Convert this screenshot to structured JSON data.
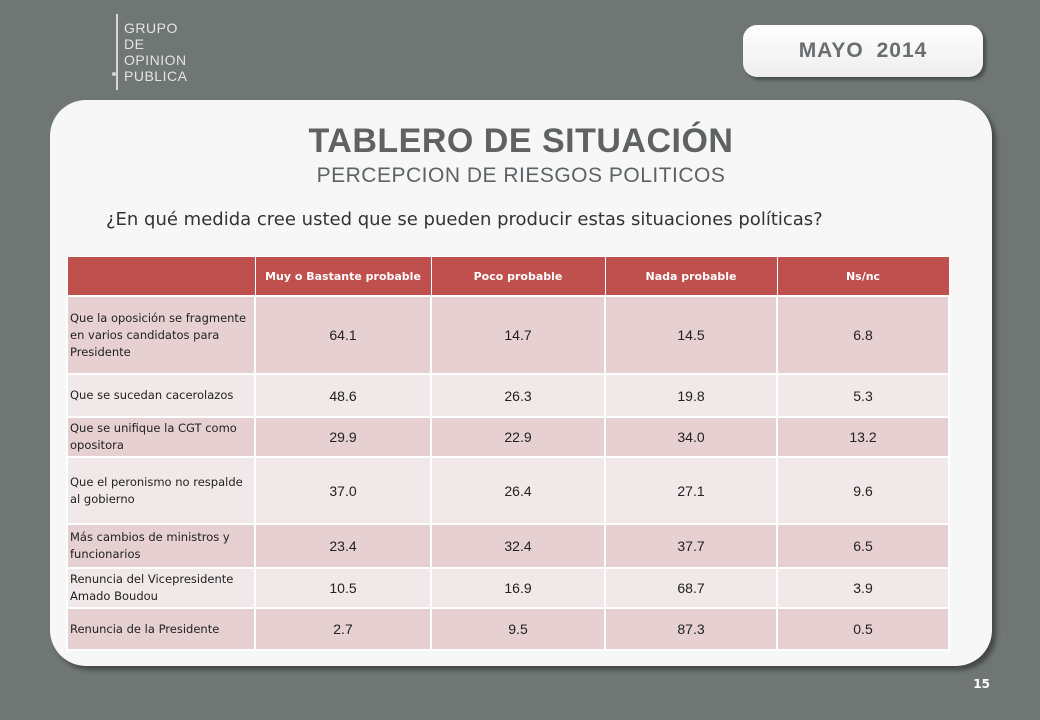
{
  "logo": {
    "lines": [
      "GRUPO",
      "DE",
      "OPINION",
      "PUBLICA"
    ]
  },
  "date_badge": "MAYO  2014",
  "title": "TABLERO DE SITUACIÓN",
  "subtitle": "PERCEPCION DE RIESGOS POLITICOS",
  "question": "¿En qué medida cree usted que se pueden producir estas situaciones políticas?",
  "table": {
    "headers": [
      "",
      "Muy o Bastante probable",
      "Poco probable",
      "Nada probable",
      "Ns/nc"
    ],
    "rows": [
      {
        "label": "Que la oposición se fragmente en varios candidatos para Presidente",
        "values": [
          "64.1",
          "14.7",
          "14.5",
          "6.8"
        ]
      },
      {
        "label": "Que se sucedan cacerolazos",
        "values": [
          "48.6",
          "26.3",
          "19.8",
          "5.3"
        ]
      },
      {
        "label": "Que se unifique la CGT como opositora",
        "values": [
          "29.9",
          "22.9",
          "34.0",
          "13.2"
        ]
      },
      {
        "label": "Que el peronismo no respalde al gobierno",
        "values": [
          "37.0",
          "26.4",
          "27.1",
          "9.6"
        ]
      },
      {
        "label": "Más cambios de ministros y funcionarios",
        "values": [
          "23.4",
          "32.4",
          "37.7",
          "6.5"
        ]
      },
      {
        "label": "Renuncia del Vicepresidente Amado Boudou",
        "values": [
          "10.5",
          "16.9",
          "68.7",
          "3.9"
        ]
      },
      {
        "label": "Renuncia de la Presidente",
        "values": [
          "2.7",
          "9.5",
          "87.3",
          "0.5"
        ]
      }
    ]
  },
  "page_number": "15",
  "colors": {
    "background": "#6f7674",
    "header": "#c0504d",
    "row_dark": "#e6d0d1",
    "row_light": "#f1e8e9"
  }
}
